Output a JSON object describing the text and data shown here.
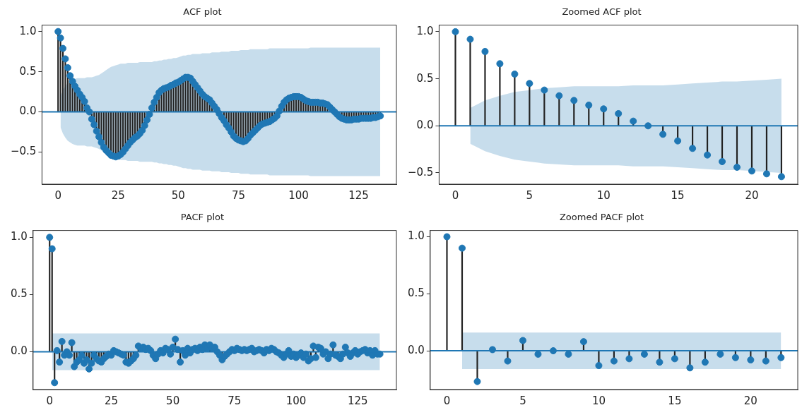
{
  "chart_data": [
    {
      "type": "lollipop",
      "title": "ACF plot",
      "xlim": [
        -6.7,
        140.7
      ],
      "xticks": [
        0,
        25,
        50,
        75,
        100,
        125
      ],
      "ylim": [
        -0.9,
        1.08
      ],
      "yticks": [
        {
          "value": -0.5,
          "label": "−0.5"
        },
        {
          "value": 0,
          "label": "0.0"
        },
        {
          "value": 0.5,
          "label": "0.5"
        },
        {
          "value": 1,
          "label": "1.0"
        }
      ],
      "grid": false,
      "marker": "circle",
      "ref_lines": [
        {
          "axis": "y",
          "value": 0,
          "color": "#1f77b4"
        }
      ],
      "x": [
        0,
        1,
        2,
        3,
        4,
        5,
        6,
        7,
        8,
        9,
        10,
        11,
        12,
        13,
        14,
        15,
        16,
        17,
        18,
        19,
        20,
        21,
        22,
        23,
        24,
        25,
        26,
        27,
        28,
        29,
        30,
        31,
        32,
        33,
        34,
        35,
        36,
        37,
        38,
        39,
        40,
        41,
        42,
        43,
        44,
        45,
        46,
        47,
        48,
        49,
        50,
        51,
        52,
        53,
        54,
        55,
        56,
        57,
        58,
        59,
        60,
        61,
        62,
        63,
        64,
        65,
        66,
        67,
        68,
        69,
        70,
        71,
        72,
        73,
        74,
        75,
        76,
        77,
        78,
        79,
        80,
        81,
        82,
        83,
        84,
        85,
        86,
        87,
        88,
        89,
        90,
        91,
        92,
        93,
        94,
        95,
        96,
        97,
        98,
        99,
        100,
        101,
        102,
        103,
        104,
        105,
        106,
        107,
        108,
        109,
        110,
        111,
        112,
        113,
        114,
        115,
        116,
        117,
        118,
        119,
        120,
        121,
        122,
        123,
        124,
        125,
        126,
        127,
        128,
        129,
        130,
        131,
        132,
        133,
        134
      ],
      "series": [
        {
          "color": "#1f77b4",
          "values": [
            1,
            0.92,
            0.79,
            0.66,
            0.55,
            0.45,
            0.38,
            0.32,
            0.27,
            0.22,
            0.18,
            0.13,
            0.05,
            0,
            -0.09,
            -0.16,
            -0.24,
            -0.31,
            -0.38,
            -0.44,
            -0.48,
            -0.51,
            -0.54,
            -0.55,
            -0.56,
            -0.55,
            -0.53,
            -0.5,
            -0.46,
            -0.42,
            -0.38,
            -0.35,
            -0.32,
            -0.3,
            -0.27,
            -0.23,
            -0.17,
            -0.1,
            -0.03,
            0.05,
            0.12,
            0.18,
            0.24,
            0.27,
            0.29,
            0.3,
            0.31,
            0.33,
            0.34,
            0.36,
            0.37,
            0.39,
            0.41,
            0.43,
            0.43,
            0.42,
            0.38,
            0.34,
            0.3,
            0.26,
            0.22,
            0.19,
            0.17,
            0.15,
            0.11,
            0.07,
            0.03,
            -0.02,
            -0.07,
            -0.11,
            -0.16,
            -0.2,
            -0.25,
            -0.3,
            -0.33,
            -0.35,
            -0.36,
            -0.37,
            -0.36,
            -0.33,
            -0.29,
            -0.26,
            -0.23,
            -0.2,
            -0.17,
            -0.15,
            -0.14,
            -0.13,
            -0.12,
            -0.1,
            -0.08,
            -0.05,
            0.01,
            0.07,
            0.12,
            0.15,
            0.17,
            0.18,
            0.19,
            0.19,
            0.19,
            0.18,
            0.16,
            0.14,
            0.13,
            0.12,
            0.12,
            0.12,
            0.12,
            0.11,
            0.11,
            0.1,
            0.09,
            0.06,
            0.03,
            0,
            -0.03,
            -0.06,
            -0.08,
            -0.09,
            -0.1,
            -0.1,
            -0.1,
            -0.09,
            -0.09,
            -0.09,
            -0.08,
            -0.08,
            -0.08,
            -0.08,
            -0.08,
            -0.07,
            -0.07,
            -0.06,
            -0.05
          ],
          "upper": [
            null,
            0.19,
            0.27,
            0.32,
            0.36,
            0.38,
            0.4,
            0.41,
            0.42,
            0.42,
            0.42,
            0.42,
            0.43,
            0.43,
            0.43,
            0.44,
            0.45,
            0.46,
            0.48,
            0.5,
            0.52,
            0.54,
            0.56,
            0.57,
            0.58,
            0.59,
            0.6,
            0.6,
            0.6,
            0.61,
            0.61,
            0.61,
            0.61,
            0.61,
            0.62,
            0.62,
            0.62,
            0.62,
            0.62,
            0.62,
            0.63,
            0.63,
            0.64,
            0.64,
            0.65,
            0.65,
            0.66,
            0.66,
            0.67,
            0.67,
            0.68,
            0.69,
            0.7,
            0.7,
            0.71,
            0.71,
            0.72,
            0.72,
            0.72,
            0.72,
            0.73,
            0.73,
            0.73,
            0.73,
            0.74,
            0.74,
            0.74,
            0.74,
            0.75,
            0.75,
            0.75,
            0.75,
            0.76,
            0.76,
            0.76,
            0.76,
            0.77,
            0.77,
            0.77,
            0.77,
            0.78,
            0.78,
            0.78,
            0.78,
            0.78,
            0.78,
            0.78,
            0.78,
            0.79,
            0.79,
            0.79,
            0.79,
            0.79,
            0.79,
            0.79,
            0.79,
            0.79,
            0.79,
            0.79,
            0.79,
            0.79,
            0.79,
            0.79,
            0.79,
            0.79,
            0.8,
            0.8,
            0.8,
            0.8,
            0.8,
            0.8,
            0.8,
            0.8,
            0.8,
            0.8,
            0.8,
            0.8,
            0.8,
            0.8,
            0.8,
            0.8,
            0.8,
            0.8,
            0.8,
            0.8,
            0.8,
            0.8,
            0.8,
            0.8,
            0.8,
            0.8,
            0.8,
            0.8,
            0.8,
            0.8
          ],
          "lower": [
            null,
            -0.19,
            -0.27,
            -0.32,
            -0.36,
            -0.38,
            -0.4,
            -0.41,
            -0.42,
            -0.42,
            -0.42,
            -0.42,
            -0.43,
            -0.43,
            -0.43,
            -0.44,
            -0.45,
            -0.46,
            -0.48,
            -0.5,
            -0.52,
            -0.54,
            -0.56,
            -0.57,
            -0.58,
            -0.59,
            -0.6,
            -0.6,
            -0.6,
            -0.61,
            -0.61,
            -0.61,
            -0.61,
            -0.61,
            -0.62,
            -0.62,
            -0.62,
            -0.62,
            -0.62,
            -0.62,
            -0.63,
            -0.63,
            -0.64,
            -0.64,
            -0.65,
            -0.65,
            -0.66,
            -0.66,
            -0.67,
            -0.67,
            -0.68,
            -0.69,
            -0.7,
            -0.7,
            -0.71,
            -0.71,
            -0.72,
            -0.72,
            -0.72,
            -0.72,
            -0.73,
            -0.73,
            -0.73,
            -0.73,
            -0.74,
            -0.74,
            -0.74,
            -0.74,
            -0.75,
            -0.75,
            -0.75,
            -0.75,
            -0.76,
            -0.76,
            -0.76,
            -0.76,
            -0.77,
            -0.77,
            -0.77,
            -0.77,
            -0.78,
            -0.78,
            -0.78,
            -0.78,
            -0.78,
            -0.78,
            -0.78,
            -0.78,
            -0.79,
            -0.79,
            -0.79,
            -0.79,
            -0.79,
            -0.79,
            -0.79,
            -0.79,
            -0.79,
            -0.79,
            -0.79,
            -0.79,
            -0.79,
            -0.79,
            -0.79,
            -0.79,
            -0.79,
            -0.8,
            -0.8,
            -0.8,
            -0.8,
            -0.8,
            -0.8,
            -0.8,
            -0.8,
            -0.8,
            -0.8,
            -0.8,
            -0.8,
            -0.8,
            -0.8,
            -0.8,
            -0.8,
            -0.8,
            -0.8,
            -0.8,
            -0.8,
            -0.8,
            -0.8,
            -0.8,
            -0.8,
            -0.8,
            -0.8,
            -0.8,
            -0.8,
            -0.8,
            -0.8
          ]
        }
      ]
    },
    {
      "type": "lollipop",
      "title": "Zoomed ACF plot",
      "xlim": [
        -1.1,
        23.1
      ],
      "xticks": [
        0,
        5,
        10,
        15,
        20
      ],
      "ylim": [
        -0.62,
        1.07
      ],
      "yticks": [
        {
          "value": -0.5,
          "label": "−0.5"
        },
        {
          "value": 0,
          "label": "0.0"
        },
        {
          "value": 0.5,
          "label": "0.5"
        },
        {
          "value": 1,
          "label": "1.0"
        }
      ],
      "grid": false,
      "marker": "circle",
      "ref_lines": [
        {
          "axis": "y",
          "value": 0,
          "color": "#1f77b4"
        }
      ],
      "x": [
        0,
        1,
        2,
        3,
        4,
        5,
        6,
        7,
        8,
        9,
        10,
        11,
        12,
        13,
        14,
        15,
        16,
        17,
        18,
        19,
        20,
        21,
        22
      ],
      "series": [
        {
          "color": "#1f77b4",
          "values": [
            1,
            0.92,
            0.79,
            0.66,
            0.55,
            0.45,
            0.38,
            0.32,
            0.27,
            0.22,
            0.18,
            0.13,
            0.05,
            0,
            -0.09,
            -0.16,
            -0.24,
            -0.31,
            -0.38,
            -0.44,
            -0.48,
            -0.51,
            -0.54
          ],
          "upper": [
            null,
            0.19,
            0.27,
            0.32,
            0.36,
            0.38,
            0.4,
            0.41,
            0.42,
            0.42,
            0.42,
            0.42,
            0.43,
            0.43,
            0.43,
            0.44,
            0.45,
            0.46,
            0.47,
            0.47,
            0.48,
            0.49,
            0.5
          ],
          "lower": [
            null,
            -0.19,
            -0.27,
            -0.32,
            -0.36,
            -0.38,
            -0.4,
            -0.41,
            -0.42,
            -0.42,
            -0.42,
            -0.42,
            -0.43,
            -0.43,
            -0.43,
            -0.44,
            -0.45,
            -0.46,
            -0.47,
            -0.47,
            -0.48,
            -0.49,
            -0.5
          ]
        }
      ]
    },
    {
      "type": "lollipop",
      "title": "PACF plot",
      "xlim": [
        -6.7,
        140.7
      ],
      "xticks": [
        0,
        25,
        50,
        75,
        100,
        125
      ],
      "ylim": [
        -0.33,
        1.06
      ],
      "yticks": [
        {
          "value": 0,
          "label": "0.0"
        },
        {
          "value": 0.5,
          "label": "0.5"
        },
        {
          "value": 1,
          "label": "1.0"
        }
      ],
      "grid": false,
      "marker": "circle",
      "ref_lines": [
        {
          "axis": "y",
          "value": 0,
          "color": "#1f77b4"
        }
      ],
      "x": [
        0,
        1,
        2,
        3,
        4,
        5,
        6,
        7,
        8,
        9,
        10,
        11,
        12,
        13,
        14,
        15,
        16,
        17,
        18,
        19,
        20,
        21,
        22,
        23,
        24,
        25,
        26,
        27,
        28,
        29,
        30,
        31,
        32,
        33,
        34,
        35,
        36,
        37,
        38,
        39,
        40,
        41,
        42,
        43,
        44,
        45,
        46,
        47,
        48,
        49,
        50,
        51,
        52,
        53,
        54,
        55,
        56,
        57,
        58,
        59,
        60,
        61,
        62,
        63,
        64,
        65,
        66,
        67,
        68,
        69,
        70,
        71,
        72,
        73,
        74,
        75,
        76,
        77,
        78,
        79,
        80,
        81,
        82,
        83,
        84,
        85,
        86,
        87,
        88,
        89,
        90,
        91,
        92,
        93,
        94,
        95,
        96,
        97,
        98,
        99,
        100,
        101,
        102,
        103,
        104,
        105,
        106,
        107,
        108,
        109,
        110,
        111,
        112,
        113,
        114,
        115,
        116,
        117,
        118,
        119,
        120,
        121,
        122,
        123,
        124,
        125,
        126,
        127,
        128,
        129,
        130,
        131,
        132,
        133,
        134
      ],
      "series": [
        {
          "color": "#1f77b4",
          "values": [
            1,
            0.9,
            -0.27,
            0.01,
            -0.09,
            0.09,
            -0.03,
            0,
            -0.03,
            0.08,
            -0.13,
            -0.09,
            -0.07,
            -0.03,
            -0.1,
            -0.07,
            -0.15,
            -0.1,
            -0.03,
            -0.06,
            -0.08,
            -0.09,
            -0.06,
            -0.04,
            -0.02,
            -0.03,
            0.01,
            0,
            -0.01,
            -0.02,
            -0.03,
            -0.09,
            -0.1,
            -0.08,
            -0.06,
            -0.03,
            0.05,
            0.03,
            0.04,
            0.02,
            0.03,
            0.01,
            -0.03,
            -0.06,
            -0.02,
            0.01,
            -0.01,
            0.03,
            0.02,
            -0.02,
            0.04,
            0.11,
            0.02,
            -0.09,
            0.01,
            -0.03,
            0.03,
            -0.01,
            0.02,
            0.03,
            0.01,
            0.04,
            0.02,
            0.06,
            0.03,
            0.06,
            0.03,
            0.04,
            0,
            -0.03,
            -0.07,
            -0.04,
            -0.02,
            0,
            0.02,
            0.01,
            0.03,
            0.02,
            0.01,
            0.02,
            0.01,
            0.02,
            0.03,
            0,
            0.01,
            0.02,
            0.01,
            -0.01,
            0.02,
            0.01,
            0.03,
            0.02,
            0,
            -0.01,
            -0.03,
            -0.05,
            -0.02,
            0.01,
            -0.04,
            -0.02,
            -0.05,
            -0.03,
            -0.01,
            -0.05,
            -0.02,
            -0.08,
            -0.06,
            0.05,
            -0.05,
            0.04,
            0.03,
            -0.02,
            0,
            -0.06,
            -0.02,
            0.06,
            -0.03,
            -0.04,
            -0.06,
            -0.02,
            0.04,
            -0.01,
            -0.04,
            -0.01,
            0.01,
            -0.02,
            0,
            0.01,
            0.02,
            -0.01,
            0.01,
            -0.03,
            0.01,
            -0.02,
            -0.02
          ],
          "upper": [
            null,
            0.16,
            0.16,
            0.16,
            0.16,
            0.16,
            0.16,
            0.16,
            0.16,
            0.16,
            0.16,
            0.16,
            0.16,
            0.16,
            0.16,
            0.16,
            0.16,
            0.16,
            0.16,
            0.16,
            0.16,
            0.16,
            0.16,
            0.16,
            0.16,
            0.16,
            0.16,
            0.16,
            0.16,
            0.16,
            0.16,
            0.16,
            0.16,
            0.16,
            0.16,
            0.16,
            0.16,
            0.16,
            0.16,
            0.16,
            0.16,
            0.16,
            0.16,
            0.16,
            0.16,
            0.16,
            0.16,
            0.16,
            0.16,
            0.16,
            0.16,
            0.16,
            0.16,
            0.16,
            0.16,
            0.16,
            0.16,
            0.16,
            0.16,
            0.16,
            0.16,
            0.16,
            0.16,
            0.16,
            0.16,
            0.16,
            0.16,
            0.16,
            0.16,
            0.16,
            0.16,
            0.16,
            0.16,
            0.16,
            0.16,
            0.16,
            0.16,
            0.16,
            0.16,
            0.16,
            0.16,
            0.16,
            0.16,
            0.16,
            0.16,
            0.16,
            0.16,
            0.16,
            0.16,
            0.16,
            0.16,
            0.16,
            0.16,
            0.16,
            0.16,
            0.16,
            0.16,
            0.16,
            0.16,
            0.16,
            0.16,
            0.16,
            0.16,
            0.16,
            0.16,
            0.16,
            0.16,
            0.16,
            0.16,
            0.16,
            0.16,
            0.16,
            0.16,
            0.16,
            0.16,
            0.16,
            0.16,
            0.16,
            0.16,
            0.16,
            0.16,
            0.16,
            0.16,
            0.16,
            0.16,
            0.16,
            0.16,
            0.16,
            0.16,
            0.16,
            0.16,
            0.16,
            0.16,
            0.16,
            0.16
          ],
          "lower": [
            null,
            -0.16,
            -0.16,
            -0.16,
            -0.16,
            -0.16,
            -0.16,
            -0.16,
            -0.16,
            -0.16,
            -0.16,
            -0.16,
            -0.16,
            -0.16,
            -0.16,
            -0.16,
            -0.16,
            -0.16,
            -0.16,
            -0.16,
            -0.16,
            -0.16,
            -0.16,
            -0.16,
            -0.16,
            -0.16,
            -0.16,
            -0.16,
            -0.16,
            -0.16,
            -0.16,
            -0.16,
            -0.16,
            -0.16,
            -0.16,
            -0.16,
            -0.16,
            -0.16,
            -0.16,
            -0.16,
            -0.16,
            -0.16,
            -0.16,
            -0.16,
            -0.16,
            -0.16,
            -0.16,
            -0.16,
            -0.16,
            -0.16,
            -0.16,
            -0.16,
            -0.16,
            -0.16,
            -0.16,
            -0.16,
            -0.16,
            -0.16,
            -0.16,
            -0.16,
            -0.16,
            -0.16,
            -0.16,
            -0.16,
            -0.16,
            -0.16,
            -0.16,
            -0.16,
            -0.16,
            -0.16,
            -0.16,
            -0.16,
            -0.16,
            -0.16,
            -0.16,
            -0.16,
            -0.16,
            -0.16,
            -0.16,
            -0.16,
            -0.16,
            -0.16,
            -0.16,
            -0.16,
            -0.16,
            -0.16,
            -0.16,
            -0.16,
            -0.16,
            -0.16,
            -0.16,
            -0.16,
            -0.16,
            -0.16,
            -0.16,
            -0.16,
            -0.16,
            -0.16,
            -0.16,
            -0.16,
            -0.16,
            -0.16,
            -0.16,
            -0.16,
            -0.16,
            -0.16,
            -0.16,
            -0.16,
            -0.16,
            -0.16,
            -0.16,
            -0.16,
            -0.16,
            -0.16,
            -0.16,
            -0.16,
            -0.16,
            -0.16,
            -0.16,
            -0.16,
            -0.16,
            -0.16,
            -0.16,
            -0.16,
            -0.16,
            -0.16,
            -0.16,
            -0.16,
            -0.16,
            -0.16,
            -0.16,
            -0.16,
            -0.16,
            -0.16,
            -0.16
          ]
        }
      ]
    },
    {
      "type": "lollipop",
      "title": "Zoomed PACF plot",
      "xlim": [
        -1.1,
        23.1
      ],
      "xticks": [
        0,
        5,
        10,
        15,
        20
      ],
      "ylim": [
        -0.34,
        1.055
      ],
      "yticks": [
        {
          "value": 0,
          "label": "0.0"
        },
        {
          "value": 0.5,
          "label": "0.5"
        },
        {
          "value": 1,
          "label": "1.0"
        }
      ],
      "grid": false,
      "marker": "circle",
      "ref_lines": [
        {
          "axis": "y",
          "value": 0,
          "color": "#1f77b4"
        }
      ],
      "x": [
        0,
        1,
        2,
        3,
        4,
        5,
        6,
        7,
        8,
        9,
        10,
        11,
        12,
        13,
        14,
        15,
        16,
        17,
        18,
        19,
        20,
        21,
        22
      ],
      "series": [
        {
          "color": "#1f77b4",
          "values": [
            1,
            0.9,
            -0.27,
            0.01,
            -0.09,
            0.09,
            -0.03,
            0,
            -0.03,
            0.08,
            -0.13,
            -0.09,
            -0.07,
            -0.03,
            -0.1,
            -0.07,
            -0.15,
            -0.1,
            -0.03,
            -0.06,
            -0.08,
            -0.09,
            -0.06
          ],
          "upper": [
            null,
            0.16,
            0.16,
            0.16,
            0.16,
            0.16,
            0.16,
            0.16,
            0.16,
            0.16,
            0.16,
            0.16,
            0.16,
            0.16,
            0.16,
            0.16,
            0.16,
            0.16,
            0.16,
            0.16,
            0.16,
            0.16,
            0.16
          ],
          "lower": [
            null,
            -0.16,
            -0.16,
            -0.16,
            -0.16,
            -0.16,
            -0.16,
            -0.16,
            -0.16,
            -0.16,
            -0.16,
            -0.16,
            -0.16,
            -0.16,
            -0.16,
            -0.16,
            -0.16,
            -0.16,
            -0.16,
            -0.16,
            -0.16,
            -0.16,
            -0.16
          ]
        }
      ]
    }
  ]
}
